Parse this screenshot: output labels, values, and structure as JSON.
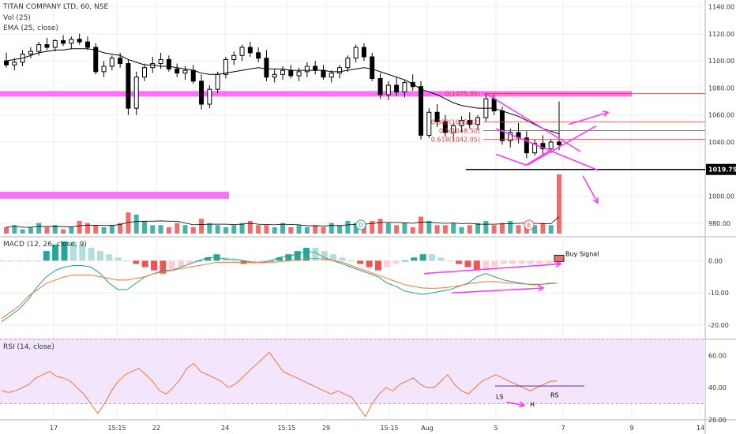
{
  "header": {
    "title": "TITAN COMPANY LTD, 60, NSE",
    "vol": "Vol (25)",
    "ema": "EMA (25, close)",
    "macd": "MACD (12, 26, close, 9)",
    "rsi": "RSI (14, close)"
  },
  "price_axis": [
    "1140.00",
    "1120.00",
    "1100.00",
    "1080.00",
    "1060.00",
    "1040.00",
    "1019.75",
    "1000.00",
    "980.00"
  ],
  "macd_axis": [
    "0.00",
    "-10.00",
    "-20.00"
  ],
  "rsi_axis": [
    "60.00",
    "40.00",
    "20.00"
  ],
  "time_axis": [
    "17",
    "15:15",
    "22",
    "24",
    "15:15",
    "29",
    "15:15",
    "Aug",
    "5",
    "7",
    "9",
    "14"
  ],
  "fib_labels": [
    "0(1075.95)",
    "0.382(1055.02)",
    "0.5(1048.50)",
    "0.618(1042.05)"
  ],
  "annotations": {
    "buy_signal": "Buy Signal",
    "ls": "LS",
    "h": "H",
    "rs": "RS",
    "earnings_d": "D",
    "earnings_e": "E",
    "current_price": "1019.75"
  },
  "colors": {
    "up": "#26a69a",
    "down": "#ef5350",
    "candle_body_up": "#ffffff",
    "candle": "#000000",
    "magenta": "#ff33ff",
    "ema": "#000000",
    "macd_line": "#2a9d8f",
    "signal_line": "#f4743b",
    "rsi_line": "#f4743b",
    "rsi_band": "#f3e5fc"
  },
  "chart_data": [
    {
      "type": "candlestick",
      "title": "TITAN COMPANY LTD, 60, NSE",
      "ylim": [
        970,
        1145
      ],
      "fib_levels": [
        {
          "ratio": 0,
          "price": 1075.95
        },
        {
          "ratio": 0.382,
          "price": 1055.02
        },
        {
          "ratio": 0.5,
          "price": 1048.5
        },
        {
          "ratio": 0.618,
          "price": 1042.05
        }
      ],
      "horizontal_line": 1019.75,
      "ohlc": [
        [
          1100,
          1106,
          1095,
          1097
        ],
        [
          1097,
          1102,
          1093,
          1099
        ],
        [
          1099,
          1108,
          1096,
          1105
        ],
        [
          1105,
          1110,
          1102,
          1107
        ],
        [
          1107,
          1114,
          1104,
          1112
        ],
        [
          1112,
          1117,
          1108,
          1110
        ],
        [
          1110,
          1116,
          1107,
          1115
        ],
        [
          1115,
          1119,
          1111,
          1113
        ],
        [
          1113,
          1118,
          1109,
          1116
        ],
        [
          1116,
          1120,
          1112,
          1114
        ],
        [
          1114,
          1118,
          1108,
          1110
        ],
        [
          1110,
          1113,
          1090,
          1092
        ],
        [
          1092,
          1100,
          1088,
          1096
        ],
        [
          1096,
          1104,
          1093,
          1102
        ],
        [
          1102,
          1106,
          1095,
          1098
        ],
        [
          1098,
          1101,
          1060,
          1065
        ],
        [
          1065,
          1092,
          1060,
          1088
        ],
        [
          1088,
          1098,
          1085,
          1095
        ],
        [
          1095,
          1103,
          1091,
          1098
        ],
        [
          1098,
          1106,
          1094,
          1101
        ],
        [
          1101,
          1104,
          1092,
          1094
        ],
        [
          1094,
          1098,
          1088,
          1091
        ],
        [
          1091,
          1096,
          1086,
          1093
        ],
        [
          1093,
          1097,
          1083,
          1085
        ],
        [
          1085,
          1090,
          1064,
          1068
        ],
        [
          1068,
          1082,
          1065,
          1079
        ],
        [
          1079,
          1092,
          1076,
          1090
        ],
        [
          1090,
          1103,
          1087,
          1101
        ],
        [
          1101,
          1107,
          1097,
          1104
        ],
        [
          1104,
          1112,
          1100,
          1110
        ],
        [
          1110,
          1114,
          1103,
          1106
        ],
        [
          1106,
          1110,
          1099,
          1102
        ],
        [
          1102,
          1108,
          1085,
          1088
        ],
        [
          1088,
          1094,
          1084,
          1090
        ],
        [
          1090,
          1096,
          1086,
          1093
        ],
        [
          1093,
          1097,
          1087,
          1089
        ],
        [
          1089,
          1095,
          1085,
          1092
        ],
        [
          1092,
          1099,
          1088,
          1096
        ],
        [
          1096,
          1100,
          1090,
          1093
        ],
        [
          1093,
          1097,
          1086,
          1088
        ],
        [
          1088,
          1093,
          1084,
          1091
        ],
        [
          1091,
          1097,
          1087,
          1095
        ],
        [
          1095,
          1104,
          1092,
          1102
        ],
        [
          1102,
          1112,
          1099,
          1110
        ],
        [
          1110,
          1113,
          1100,
          1103
        ],
        [
          1103,
          1106,
          1085,
          1087
        ],
        [
          1087,
          1091,
          1072,
          1075
        ],
        [
          1075,
          1085,
          1071,
          1082
        ],
        [
          1082,
          1088,
          1074,
          1077
        ],
        [
          1077,
          1086,
          1073,
          1084
        ],
        [
          1084,
          1090,
          1078,
          1081
        ],
        [
          1081,
          1085,
          1042,
          1045
        ],
        [
          1045,
          1065,
          1043,
          1062
        ],
        [
          1062,
          1068,
          1051,
          1055
        ],
        [
          1055,
          1060,
          1044,
          1047
        ],
        [
          1047,
          1054,
          1041,
          1052
        ],
        [
          1052,
          1059,
          1047,
          1056
        ],
        [
          1056,
          1062,
          1050,
          1053
        ],
        [
          1053,
          1060,
          1049,
          1058
        ],
        [
          1058,
          1076,
          1055,
          1072
        ],
        [
          1072,
          1075,
          1060,
          1063
        ],
        [
          1063,
          1066,
          1038,
          1041
        ],
        [
          1041,
          1050,
          1036,
          1047
        ],
        [
          1047,
          1054,
          1039,
          1043
        ],
        [
          1043,
          1048,
          1028,
          1032
        ],
        [
          1032,
          1042,
          1030,
          1039
        ],
        [
          1039,
          1045,
          1030,
          1035
        ],
        [
          1035,
          1042,
          1032,
          1040
        ],
        [
          1040,
          1070,
          1034,
          1038
        ]
      ],
      "ema": [
        1100,
        1101,
        1102,
        1104,
        1106,
        1107,
        1108,
        1108,
        1109,
        1109,
        1109,
        1108,
        1106,
        1105,
        1104,
        1101,
        1099,
        1097,
        1097,
        1096,
        1096,
        1095,
        1094,
        1093,
        1091,
        1090,
        1090,
        1091,
        1092,
        1093,
        1094,
        1095,
        1094,
        1094,
        1094,
        1093,
        1093,
        1093,
        1093,
        1093,
        1092,
        1092,
        1093,
        1094,
        1095,
        1094,
        1092,
        1090,
        1088,
        1086,
        1083,
        1079,
        1077,
        1075,
        1072,
        1069,
        1067,
        1066,
        1065,
        1065,
        1065,
        1063,
        1061,
        1059,
        1056,
        1053,
        1050,
        1048,
        1046
      ]
    },
    {
      "type": "bar",
      "name": "Vol (25)",
      "values": [
        3,
        4,
        2,
        3,
        5,
        3,
        4,
        2,
        3,
        6,
        5,
        4,
        3,
        4,
        5,
        10,
        9,
        6,
        4,
        4,
        3,
        5,
        4,
        3,
        7,
        5,
        4,
        3,
        4,
        5,
        6,
        4,
        4,
        3,
        5,
        3,
        4,
        3,
        4,
        3,
        5,
        4,
        6,
        5,
        4,
        6,
        7,
        5,
        4,
        5,
        3,
        8,
        6,
        4,
        4,
        5,
        3,
        4,
        5,
        6,
        4,
        5,
        6,
        4,
        5,
        4,
        5,
        4,
        28
      ]
    },
    {
      "type": "line",
      "name": "MACD (12, 26, close, 9)",
      "ylim": [
        -22,
        5
      ],
      "macd": [
        -19,
        -17,
        -15,
        -12,
        -8,
        -5,
        -3,
        -2,
        -1.5,
        -1.5,
        -2,
        -4,
        -7,
        -9,
        -9,
        -7,
        -5,
        -4,
        -3,
        -3,
        -2,
        -1,
        0,
        1,
        1,
        0.5,
        0.5,
        0,
        -0.5,
        -0.5,
        0,
        1,
        1.5,
        2,
        3,
        2.5,
        1,
        0,
        -1,
        -2,
        -3,
        -4,
        -5,
        -7,
        -8,
        -9.5,
        -10,
        -10.5,
        -10,
        -9.5,
        -9,
        -8,
        -7,
        -5,
        -4,
        -5,
        -6,
        -6.5,
        -7,
        -7.5,
        -7.5,
        -7,
        -7
      ],
      "signal": [
        -18,
        -16,
        -14,
        -11,
        -9,
        -7,
        -6,
        -5,
        -4.5,
        -4.5,
        -4.5,
        -5,
        -5.5,
        -6,
        -6,
        -5.5,
        -5,
        -4,
        -3.5,
        -3,
        -2.5,
        -2,
        -1.5,
        -1,
        -0.5,
        -0.5,
        -0.5,
        -0.5,
        -0.5,
        -0.5,
        -0.5,
        -0.3,
        0,
        0.3,
        0.6,
        0.7,
        0.5,
        0,
        -0.5,
        -1.5,
        -2.5,
        -3.5,
        -4.5,
        -5.5,
        -6.5,
        -7.5,
        -8,
        -8.5,
        -8.6,
        -8.5,
        -8.2,
        -7.8,
        -7.2,
        -6.8,
        -6.5,
        -6.5,
        -6.8,
        -7,
        -7.2,
        -7.3,
        -7.3,
        -7.2,
        -7
      ],
      "histogram": [
        0,
        0,
        0,
        0,
        0,
        3,
        5,
        6,
        6,
        5,
        4,
        3,
        2,
        1,
        0,
        -1,
        -2,
        -3,
        -4,
        -3,
        -2,
        -1,
        0,
        1,
        2,
        1,
        0,
        -1,
        -1,
        -1,
        0,
        1,
        2,
        3,
        4,
        4,
        3,
        2,
        1,
        0,
        -1,
        -2,
        -3,
        -2,
        -1,
        0,
        1,
        2,
        2,
        1,
        0,
        -1,
        -2,
        -3,
        -3,
        -2,
        -1,
        -1,
        -1,
        -1,
        -1,
        -1,
        -1
      ]
    },
    {
      "type": "line",
      "name": "RSI (14, close)",
      "ylim": [
        20,
        70
      ],
      "band": [
        30,
        70
      ],
      "values": [
        38,
        37,
        38,
        40,
        42,
        46,
        48,
        50,
        47,
        46,
        44,
        40,
        36,
        30,
        24,
        30,
        38,
        44,
        48,
        50,
        52,
        48,
        44,
        38,
        36,
        40,
        45,
        52,
        55,
        50,
        48,
        46,
        44,
        40,
        42,
        46,
        50,
        54,
        58,
        62,
        56,
        50,
        48,
        46,
        44,
        42,
        40,
        38,
        36,
        38,
        36,
        34,
        28,
        22,
        30,
        36,
        40,
        38,
        42,
        44,
        46,
        42,
        40,
        40,
        44,
        48,
        42,
        38,
        36,
        40,
        44,
        46,
        48,
        46,
        44,
        42,
        40,
        38,
        40,
        42,
        44,
        44
      ]
    }
  ]
}
